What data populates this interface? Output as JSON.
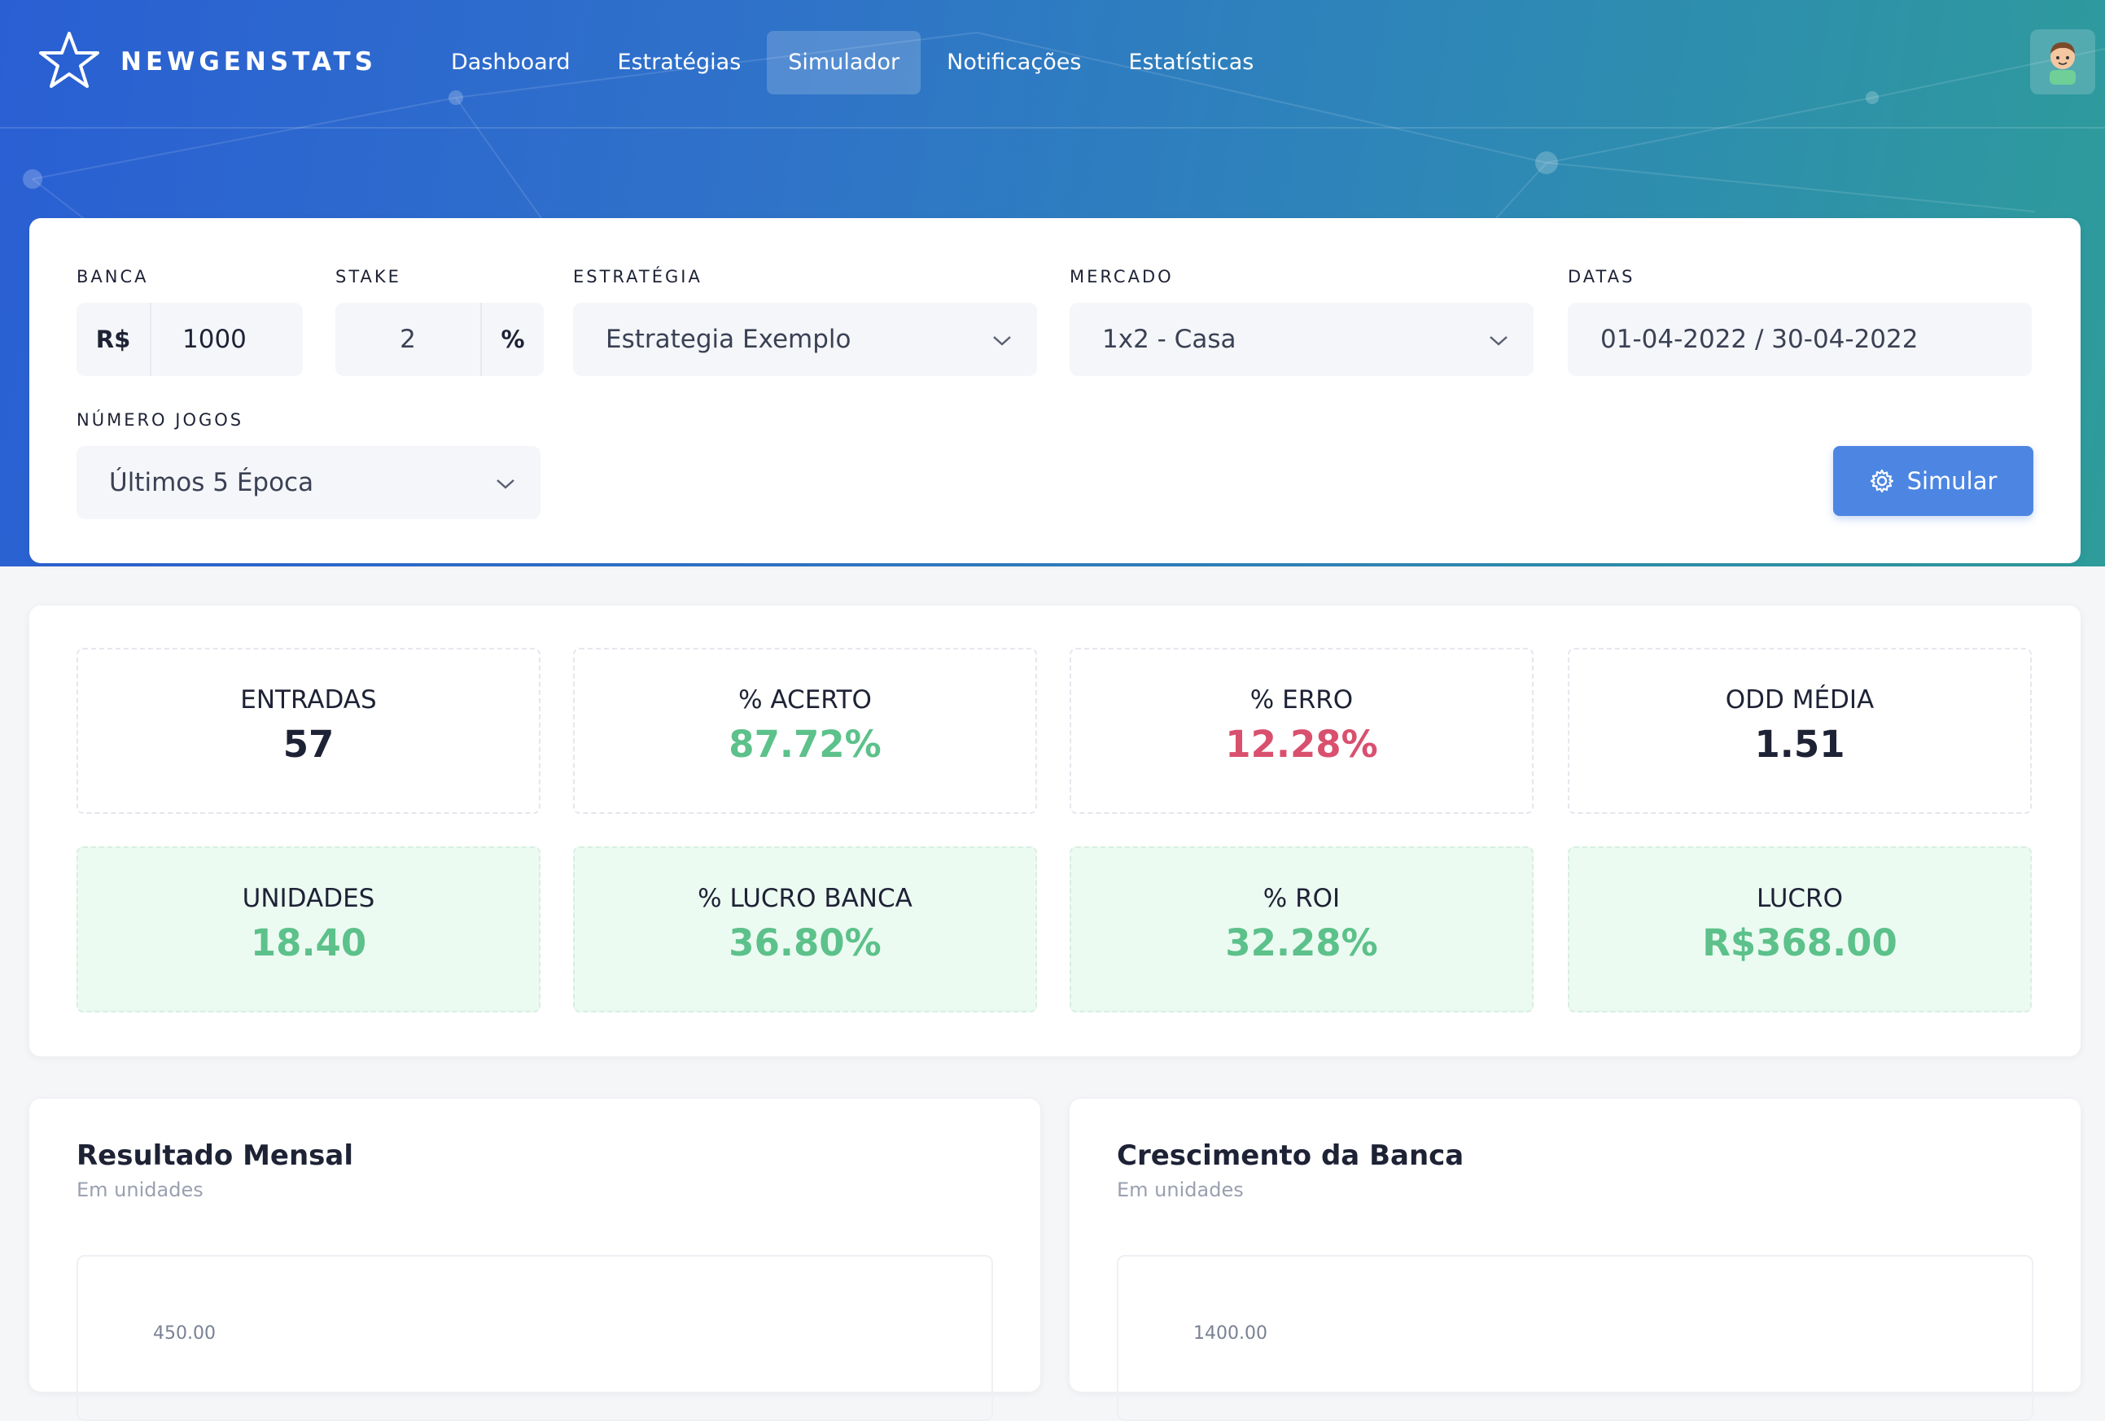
{
  "brand": {
    "name": "NEWGENSTATS",
    "logo_icon": "star-logo-icon"
  },
  "nav": {
    "items": [
      {
        "label": "Dashboard",
        "active": false
      },
      {
        "label": "Estratégias",
        "active": false
      },
      {
        "label": "Simulador",
        "active": true
      },
      {
        "label": "Notificações",
        "active": false
      },
      {
        "label": "Estatísticas",
        "active": false
      }
    ]
  },
  "user": {
    "avatar_icon": "user-avatar-icon"
  },
  "filters": {
    "banca": {
      "label": "BANCA",
      "prefix": "R$",
      "value": "1000"
    },
    "stake": {
      "label": "STAKE",
      "value": "2",
      "suffix": "%"
    },
    "estrategia": {
      "label": "ESTRATÉGIA",
      "value": "Estrategia Exemplo"
    },
    "mercado": {
      "label": "MERCADO",
      "value": "1x2 - Casa"
    },
    "datas": {
      "label": "DATAS",
      "value": "01-04-2022 / 30-04-2022"
    },
    "numero_jogos": {
      "label": "NÚMERO JOGOS",
      "value": "Últimos 5 Época"
    },
    "simular_label": "Simular"
  },
  "stats": [
    {
      "label": "ENTRADAS",
      "value": "57",
      "tone": "dark",
      "highlight": false
    },
    {
      "label": "% ACERTO",
      "value": "87.72%",
      "tone": "green",
      "highlight": false
    },
    {
      "label": "% ERRO",
      "value": "12.28%",
      "tone": "red",
      "highlight": false
    },
    {
      "label": "ODD MÉDIA",
      "value": "1.51",
      "tone": "dark",
      "highlight": false
    },
    {
      "label": "UNIDADES",
      "value": "18.40",
      "tone": "green",
      "highlight": true
    },
    {
      "label": "% LUCRO BANCA",
      "value": "36.80%",
      "tone": "green",
      "highlight": true
    },
    {
      "label": "% ROI",
      "value": "32.28%",
      "tone": "green",
      "highlight": true
    },
    {
      "label": "LUCRO",
      "value": "R$368.00",
      "tone": "green",
      "highlight": true
    }
  ],
  "charts": {
    "mensal": {
      "title": "Resultado Mensal",
      "subtitle": "Em unidades",
      "first_tick": "450.00"
    },
    "crescimento": {
      "title": "Crescimento da Banca",
      "subtitle": "Em unidades",
      "first_tick": "1400.00"
    }
  },
  "colors": {
    "accent": "#4d86e2",
    "positive": "#5cc18a",
    "negative": "#d9506e",
    "highlight_bg": "#ecfbf2"
  }
}
